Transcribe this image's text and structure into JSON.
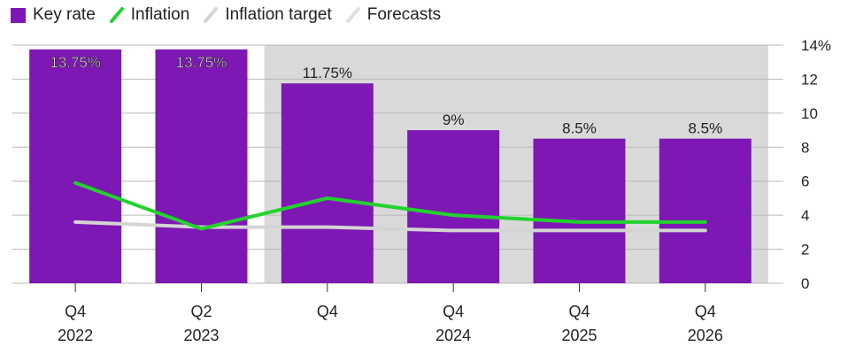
{
  "legend": {
    "key_rate": "Key rate",
    "inflation": "Inflation",
    "inflation_target": "Inflation target",
    "forecasts": "Forecasts"
  },
  "colors": {
    "key_rate": "#7e18b4",
    "inflation": "#22d22e",
    "inflation_target": "#d4d4d4",
    "forecast_shade": "#d9d9d9",
    "grid": "#b8b8b8",
    "text": "#222222"
  },
  "chart_data": {
    "type": "bar",
    "categories": [
      [
        "Q4",
        "2022"
      ],
      [
        "Q2",
        "2023"
      ],
      [
        "Q4",
        ""
      ],
      [
        "Q4",
        "2024"
      ],
      [
        "Q4",
        "2025"
      ],
      [
        "Q4",
        "2026"
      ]
    ],
    "series": [
      {
        "name": "Key rate",
        "type": "bar",
        "values": [
          13.75,
          13.75,
          11.75,
          9,
          8.5,
          8.5
        ]
      },
      {
        "name": "Inflation",
        "type": "line",
        "values": [
          5.9,
          3.2,
          5.0,
          4.0,
          3.6,
          3.6
        ]
      },
      {
        "name": "Inflation target",
        "type": "line",
        "values": [
          3.6,
          3.3,
          3.3,
          3.1,
          3.1,
          3.1
        ]
      }
    ],
    "bar_labels": [
      "13.75%",
      "13.75%",
      "11.75%",
      "9%",
      "8.5%",
      "8.5%"
    ],
    "forecast_start_index": 2,
    "y_ticks": [
      "14%",
      "12",
      "10",
      "8",
      "6",
      "4",
      "2",
      "0"
    ],
    "ylim": [
      0,
      14
    ],
    "grid": true,
    "y_axis_side": "right",
    "legend_position": "top-left"
  }
}
